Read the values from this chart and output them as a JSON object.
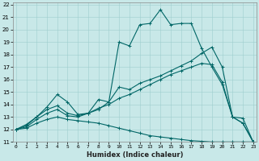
{
  "xlabel": "Humidex (Indice chaleur)",
  "xlim": [
    -0.3,
    23.3
  ],
  "ylim": [
    11,
    22.2
  ],
  "yticks": [
    11,
    12,
    13,
    14,
    15,
    16,
    17,
    18,
    19,
    20,
    21,
    22
  ],
  "xticks": [
    0,
    1,
    2,
    3,
    4,
    5,
    6,
    7,
    8,
    9,
    10,
    11,
    12,
    13,
    14,
    15,
    16,
    17,
    18,
    19,
    20,
    21,
    22,
    23
  ],
  "bg_color": "#c8e8e8",
  "line_color": "#006666",
  "grid_color": "#9ecece",
  "lines": [
    {
      "x": [
        0,
        1,
        2,
        3,
        4,
        5,
        6,
        7,
        8,
        9,
        10,
        11,
        12,
        13,
        14,
        15,
        16,
        17,
        18,
        19,
        20,
        21,
        22,
        23
      ],
      "y": [
        12.0,
        12.4,
        13.0,
        13.8,
        14.8,
        14.2,
        13.2,
        13.3,
        14.4,
        14.2,
        19.0,
        18.7,
        20.4,
        20.5,
        21.6,
        20.4,
        20.5,
        20.5,
        18.5,
        17.0,
        15.6,
        13.0,
        12.9,
        11.0
      ]
    },
    {
      "x": [
        0,
        1,
        2,
        3,
        4,
        5,
        6,
        7,
        8,
        9,
        10,
        11,
        12,
        13,
        14,
        15,
        16,
        17,
        18,
        19,
        20,
        21,
        22,
        23
      ],
      "y": [
        12.0,
        12.3,
        13.0,
        13.6,
        13.9,
        13.3,
        13.1,
        13.3,
        13.6,
        14.2,
        15.4,
        15.2,
        15.7,
        16.0,
        16.3,
        16.7,
        17.1,
        17.5,
        18.1,
        18.6,
        17.0,
        13.0,
        12.5,
        11.0
      ]
    },
    {
      "x": [
        0,
        1,
        2,
        3,
        4,
        5,
        6,
        7,
        8,
        9,
        10,
        11,
        12,
        13,
        14,
        15,
        16,
        17,
        18,
        19,
        20,
        21,
        22,
        23
      ],
      "y": [
        12.0,
        12.2,
        12.8,
        13.3,
        13.6,
        13.1,
        13.0,
        13.3,
        13.7,
        14.0,
        14.5,
        14.8,
        15.2,
        15.6,
        16.0,
        16.4,
        16.7,
        17.0,
        17.3,
        17.2,
        15.8,
        13.0,
        12.5,
        11.0
      ]
    },
    {
      "x": [
        0,
        1,
        2,
        3,
        4,
        5,
        6,
        7,
        8,
        9,
        10,
        11,
        12,
        13,
        14,
        15,
        16,
        17,
        18,
        19,
        20,
        21,
        22,
        23
      ],
      "y": [
        12.0,
        12.1,
        12.5,
        12.8,
        13.0,
        12.8,
        12.7,
        12.6,
        12.5,
        12.3,
        12.1,
        11.9,
        11.7,
        11.5,
        11.4,
        11.3,
        11.2,
        11.1,
        11.05,
        11.0,
        11.0,
        11.0,
        11.0,
        11.0
      ]
    }
  ]
}
